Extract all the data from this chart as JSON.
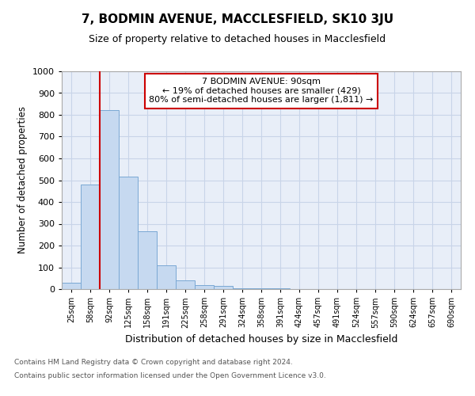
{
  "title": "7, BODMIN AVENUE, MACCLESFIELD, SK10 3JU",
  "subtitle": "Size of property relative to detached houses in Macclesfield",
  "xlabel": "Distribution of detached houses by size in Macclesfield",
  "ylabel": "Number of detached properties",
  "footnote1": "Contains HM Land Registry data © Crown copyright and database right 2024.",
  "footnote2": "Contains public sector information licensed under the Open Government Licence v3.0.",
  "bin_labels": [
    "25sqm",
    "58sqm",
    "92sqm",
    "125sqm",
    "158sqm",
    "191sqm",
    "225sqm",
    "258sqm",
    "291sqm",
    "324sqm",
    "358sqm",
    "391sqm",
    "424sqm",
    "457sqm",
    "491sqm",
    "524sqm",
    "557sqm",
    "590sqm",
    "624sqm",
    "657sqm",
    "690sqm"
  ],
  "bar_values": [
    30,
    480,
    820,
    515,
    265,
    110,
    40,
    20,
    15,
    5,
    5,
    5,
    0,
    0,
    0,
    0,
    0,
    0,
    0,
    0,
    0
  ],
  "bar_color": "#c6d9f0",
  "bar_edge_color": "#7aa8d4",
  "background_color": "#e8eef8",
  "grid_color": "#c8d4e8",
  "vline_color": "#cc0000",
  "annotation_text": "7 BODMIN AVENUE: 90sqm\n← 19% of detached houses are smaller (429)\n80% of semi-detached houses are larger (1,811) →",
  "annotation_box_color": "#cc0000",
  "ylim": [
    0,
    1000
  ],
  "yticks": [
    0,
    100,
    200,
    300,
    400,
    500,
    600,
    700,
    800,
    900,
    1000
  ]
}
